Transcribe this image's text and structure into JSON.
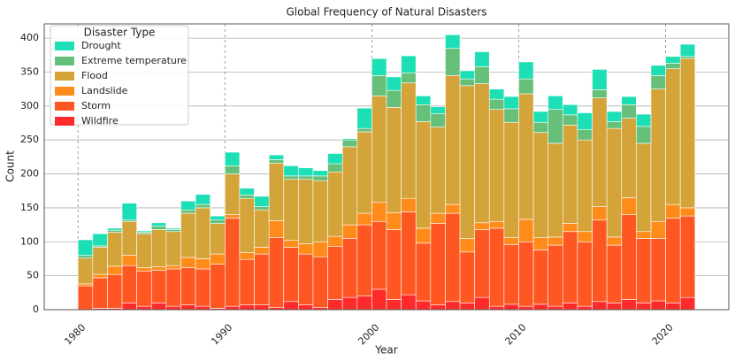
{
  "chart_data": {
    "type": "histogram",
    "title": "Global Frequency of Natural Disasters",
    "x_label": "Year",
    "y_label": "Count",
    "legend_title": "Disaster Type",
    "bins": [
      1980,
      1981,
      1982,
      1983,
      1984,
      1985,
      1986,
      1987,
      1988,
      1989,
      1990,
      1991,
      1992,
      1993,
      1994,
      1995,
      1996,
      1997,
      1998,
      1999,
      2000,
      2001,
      2002,
      2003,
      2004,
      2005,
      2006,
      2007,
      2008,
      2009,
      2010,
      2011,
      2012,
      2013,
      2014,
      2015,
      2016,
      2017,
      2018,
      2019,
      2020,
      2021,
      2022
    ],
    "series": [
      {
        "name": "Drought",
        "color": "#1ddfb5",
        "values": [
          23,
          18,
          3,
          25,
          2,
          5,
          2,
          13,
          15,
          6,
          20,
          10,
          15,
          7,
          15,
          12,
          8,
          15,
          2,
          30,
          25,
          20,
          25,
          13,
          10,
          20,
          12,
          22,
          15,
          18,
          25,
          16,
          20,
          15,
          25,
          30,
          15,
          12,
          18,
          15,
          10,
          18
        ]
      },
      {
        "name": "Extreme temperature",
        "color": "#66c07a",
        "values": [
          4,
          2,
          3,
          2,
          2,
          5,
          3,
          5,
          5,
          5,
          12,
          5,
          5,
          5,
          5,
          5,
          7,
          12,
          10,
          5,
          30,
          25,
          15,
          25,
          20,
          40,
          10,
          25,
          15,
          20,
          22,
          15,
          50,
          15,
          15,
          12,
          10,
          20,
          25,
          20,
          8,
          3
        ]
      },
      {
        "name": "Flood",
        "color": "#d4a43a",
        "values": [
          38,
          40,
          50,
          50,
          50,
          55,
          50,
          65,
          75,
          45,
          60,
          80,
          55,
          85,
          90,
          95,
          90,
          95,
          115,
          120,
          157,
          155,
          170,
          157,
          127,
          190,
          225,
          205,
          165,
          170,
          185,
          155,
          138,
          145,
          135,
          160,
          160,
          117,
          130,
          195,
          200,
          220
        ]
      },
      {
        "name": "Landslide",
        "color": "#ff8c1a",
        "values": [
          3,
          5,
          12,
          15,
          5,
          5,
          5,
          15,
          15,
          15,
          5,
          10,
          10,
          25,
          10,
          15,
          22,
          15,
          20,
          17,
          28,
          25,
          20,
          22,
          15,
          13,
          20,
          10,
          10,
          10,
          33,
          18,
          12,
          12,
          15,
          20,
          12,
          25,
          10,
          25,
          20,
          12
        ]
      },
      {
        "name": "Storm",
        "color": "#ff5722",
        "values": [
          35,
          45,
          50,
          55,
          52,
          48,
          55,
          55,
          55,
          65,
          130,
          67,
          75,
          103,
          80,
          75,
          75,
          78,
          87,
          105,
          100,
          103,
          122,
          85,
          120,
          130,
          75,
          100,
          115,
          88,
          95,
          80,
          90,
          105,
          95,
          120,
          85,
          125,
          95,
          92,
          125,
          120
        ]
      },
      {
        "name": "Wildfire",
        "color": "#ff2a2a",
        "values": [
          0,
          2,
          2,
          10,
          5,
          10,
          5,
          7,
          5,
          2,
          5,
          7,
          7,
          3,
          12,
          7,
          3,
          15,
          18,
          20,
          30,
          15,
          22,
          13,
          7,
          12,
          10,
          18,
          5,
          8,
          5,
          8,
          5,
          10,
          5,
          12,
          10,
          15,
          10,
          13,
          10,
          18
        ]
      }
    ],
    "xlim": [
      1977.7,
      2024.3
    ],
    "xticks": [
      1980,
      1990,
      2000,
      2010,
      2020
    ],
    "ylim": [
      0,
      421
    ],
    "yticks": [
      0,
      50,
      100,
      150,
      200,
      250,
      300,
      350,
      400
    ],
    "grid": true,
    "legend": "upper left"
  }
}
